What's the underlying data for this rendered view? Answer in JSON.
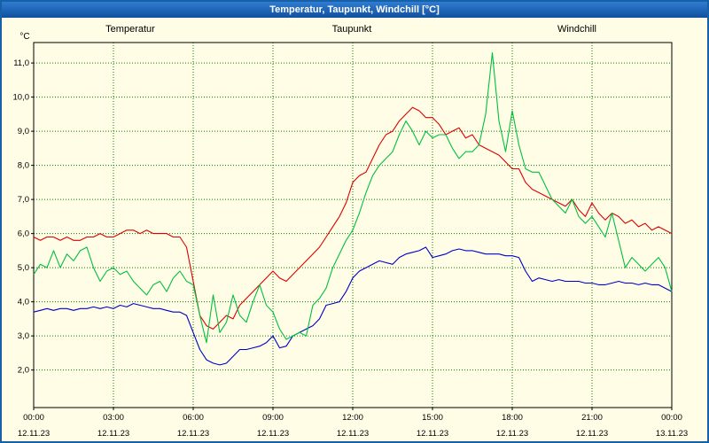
{
  "window": {
    "title": "Temperatur, Taupunkt, Windchill [°C]"
  },
  "chart_data": {
    "type": "line",
    "title": "Temperatur, Taupunkt, Windchill [°C]",
    "xlabel": "",
    "ylabel": "°C",
    "background_color": "#fffde6",
    "grid_color": "#008000",
    "grid_style": "dotted",
    "legend_position": "top",
    "xlim": [
      0,
      24
    ],
    "ylim": [
      0.9,
      11.6
    ],
    "x_start": 0,
    "x_step_hours": 0.25,
    "yticks": [
      {
        "value": 2,
        "label": "2,0"
      },
      {
        "value": 3,
        "label": "3,0"
      },
      {
        "value": 4,
        "label": "4,0"
      },
      {
        "value": 5,
        "label": "5,0"
      },
      {
        "value": 6,
        "label": "6,0"
      },
      {
        "value": 7,
        "label": "7,0"
      },
      {
        "value": 8,
        "label": "8,0"
      },
      {
        "value": 9,
        "label": "9,0"
      },
      {
        "value": 10,
        "label": "10,0"
      },
      {
        "value": 11,
        "label": "11,0"
      }
    ],
    "xticks": [
      {
        "hour": 0,
        "time": "00:00",
        "date": "12.11.23"
      },
      {
        "hour": 3,
        "time": "03:00",
        "date": "12.11.23"
      },
      {
        "hour": 6,
        "time": "06:00",
        "date": "12.11.23"
      },
      {
        "hour": 9,
        "time": "09:00",
        "date": "12.11.23"
      },
      {
        "hour": 12,
        "time": "12:00",
        "date": "12.11.23"
      },
      {
        "hour": 15,
        "time": "15:00",
        "date": "12.11.23"
      },
      {
        "hour": 18,
        "time": "18:00",
        "date": "12.11.23"
      },
      {
        "hour": 21,
        "time": "21:00",
        "date": "12.11.23"
      },
      {
        "hour": 24,
        "time": "00:00",
        "date": "13.11.23"
      }
    ],
    "series": [
      {
        "name": "Temperatur",
        "color": "#dc0000",
        "values": [
          5.9,
          5.8,
          5.9,
          5.9,
          5.8,
          5.9,
          5.8,
          5.8,
          5.9,
          5.9,
          6.0,
          5.9,
          5.9,
          6.0,
          6.1,
          6.1,
          6.0,
          6.1,
          6.0,
          6.0,
          6.0,
          5.9,
          5.9,
          5.6,
          4.6,
          3.6,
          3.3,
          3.2,
          3.4,
          3.6,
          3.5,
          3.9,
          4.1,
          4.3,
          4.5,
          4.7,
          4.9,
          4.7,
          4.6,
          4.8,
          5.0,
          5.2,
          5.4,
          5.6,
          5.9,
          6.2,
          6.5,
          6.9,
          7.5,
          7.7,
          7.8,
          8.2,
          8.6,
          8.9,
          9.0,
          9.3,
          9.5,
          9.7,
          9.6,
          9.4,
          9.4,
          9.2,
          8.9,
          9.0,
          9.1,
          8.8,
          8.9,
          8.6,
          8.5,
          8.4,
          8.3,
          8.1,
          7.9,
          7.9,
          7.5,
          7.3,
          7.2,
          7.1,
          7.0,
          6.9,
          6.8,
          7.0,
          6.7,
          6.5,
          6.9,
          6.6,
          6.4,
          6.6,
          6.5,
          6.3,
          6.4,
          6.2,
          6.3,
          6.1,
          6.2,
          6.1,
          6.0
        ]
      },
      {
        "name": "Taupunkt",
        "color": "#0000c8",
        "values": [
          3.7,
          3.75,
          3.8,
          3.75,
          3.8,
          3.8,
          3.75,
          3.8,
          3.8,
          3.85,
          3.8,
          3.85,
          3.8,
          3.9,
          3.85,
          3.95,
          3.9,
          3.85,
          3.8,
          3.8,
          3.75,
          3.7,
          3.7,
          3.6,
          3.1,
          2.6,
          2.3,
          2.2,
          2.15,
          2.2,
          2.4,
          2.6,
          2.6,
          2.65,
          2.7,
          2.8,
          3.0,
          2.65,
          2.7,
          3.0,
          3.1,
          3.2,
          3.3,
          3.5,
          3.9,
          3.95,
          4.0,
          4.3,
          4.7,
          4.9,
          5.0,
          5.1,
          5.2,
          5.15,
          5.1,
          5.3,
          5.4,
          5.45,
          5.5,
          5.6,
          5.3,
          5.35,
          5.4,
          5.5,
          5.55,
          5.5,
          5.5,
          5.45,
          5.4,
          5.4,
          5.4,
          5.35,
          5.35,
          5.3,
          4.9,
          4.6,
          4.7,
          4.65,
          4.6,
          4.65,
          4.6,
          4.6,
          4.6,
          4.55,
          4.55,
          4.5,
          4.5,
          4.55,
          4.6,
          4.55,
          4.55,
          4.5,
          4.55,
          4.5,
          4.5,
          4.4,
          4.3
        ]
      },
      {
        "name": "Windchill",
        "color": "#00c040",
        "values": [
          4.8,
          5.1,
          5.0,
          5.5,
          5.0,
          5.4,
          5.2,
          5.5,
          5.6,
          5.0,
          4.6,
          4.9,
          5.0,
          4.8,
          4.9,
          4.6,
          4.4,
          4.2,
          4.5,
          4.6,
          4.3,
          4.7,
          4.9,
          4.6,
          4.5,
          3.6,
          2.8,
          4.2,
          3.1,
          3.4,
          4.2,
          3.6,
          3.4,
          4.0,
          4.5,
          3.9,
          3.7,
          3.2,
          2.9,
          3.0,
          3.1,
          3.0,
          3.9,
          4.1,
          4.4,
          5.0,
          5.4,
          5.8,
          6.1,
          6.6,
          7.2,
          7.7,
          8.0,
          8.2,
          8.4,
          8.9,
          9.3,
          9.0,
          8.6,
          9.0,
          8.8,
          8.9,
          8.9,
          8.5,
          8.2,
          8.4,
          8.4,
          8.6,
          9.5,
          11.3,
          9.3,
          8.4,
          9.6,
          8.6,
          7.9,
          7.8,
          7.8,
          7.4,
          7.0,
          6.8,
          6.6,
          7.0,
          6.5,
          6.3,
          6.5,
          6.2,
          5.9,
          6.6,
          5.8,
          5.0,
          5.3,
          5.1,
          4.9,
          5.1,
          5.3,
          5.0,
          4.3
        ]
      }
    ]
  }
}
